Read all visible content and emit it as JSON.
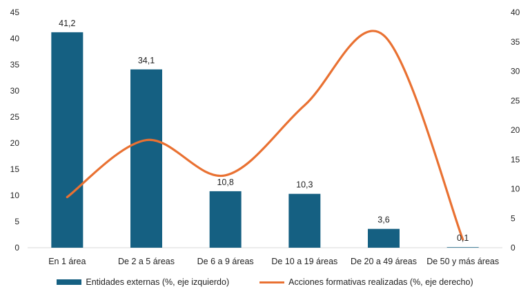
{
  "chart_data": {
    "type": "bar+line",
    "categories": [
      "En 1 área",
      "De 2 a 5 áreas",
      "De 6 a 9 áreas",
      "De 10 a 19 áreas",
      "De 20 a 49 áreas",
      "De 50 y más áreas"
    ],
    "series": [
      {
        "name": "Entidades externas (%, eje izquierdo)",
        "type": "bar",
        "axis": "left",
        "values": [
          41.2,
          34.1,
          10.8,
          10.3,
          3.6,
          0.1
        ],
        "data_labels": [
          "41,2",
          "34,1",
          "10,8",
          "10,3",
          "3,6",
          "0,1"
        ],
        "color": "#156082"
      },
      {
        "name": "Acciones formativas realizadas (%, eje derecho)",
        "type": "line",
        "axis": "right",
        "smooth": true,
        "values": [
          8.6,
          18.3,
          12.3,
          24.2,
          36.1,
          1.4
        ],
        "color": "#E97132"
      }
    ],
    "y_left": {
      "min": 0,
      "max": 45,
      "step": 5,
      "ticks": [
        "0",
        "5",
        "10",
        "15",
        "20",
        "25",
        "30",
        "35",
        "40",
        "45"
      ]
    },
    "y_right": {
      "min": 0,
      "max": 40,
      "step": 5,
      "ticks": [
        "0",
        "5",
        "10",
        "15",
        "20",
        "25",
        "30",
        "35",
        "40"
      ]
    },
    "grid": false,
    "legend_position": "bottom"
  }
}
